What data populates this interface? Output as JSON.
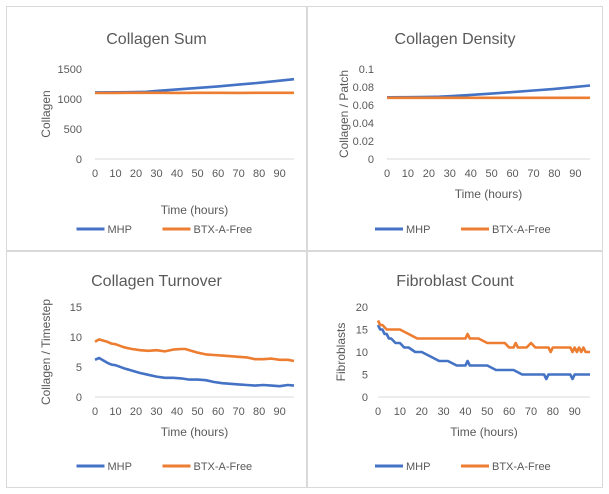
{
  "colors": {
    "MHP": "#4472C4",
    "BTX-A-Free": "#ED7D31"
  },
  "chart_data": [
    {
      "type": "line",
      "title": "Collagen Sum",
      "xlabel": "Time (hours)",
      "ylabel": "Collagen",
      "xlim": [
        0,
        97
      ],
      "ylim": [
        0,
        1500
      ],
      "xticks": [
        "0",
        "10",
        "20",
        "30",
        "40",
        "50",
        "60",
        "70",
        "80",
        "90"
      ],
      "yticks": [
        "0",
        "500",
        "1000",
        "1500"
      ],
      "legend": "bottom",
      "series": [
        {
          "name": "MHP",
          "x": [
            0,
            10,
            20,
            25,
            30,
            40,
            50,
            60,
            70,
            80,
            90,
            97
          ],
          "y": [
            1110,
            1112,
            1115,
            1120,
            1135,
            1160,
            1185,
            1210,
            1240,
            1270,
            1305,
            1330
          ]
        },
        {
          "name": "BTX-A-Free",
          "x": [
            0,
            10,
            20,
            30,
            40,
            50,
            60,
            70,
            80,
            90,
            97
          ],
          "y": [
            1100,
            1102,
            1103,
            1103,
            1102,
            1103,
            1103,
            1102,
            1103,
            1103,
            1103
          ]
        }
      ]
    },
    {
      "type": "line",
      "title": "Collagen Density",
      "xlabel": "Time (hours)",
      "ylabel": "Collagen / Patch",
      "xlim": [
        0,
        97
      ],
      "ylim": [
        0,
        0.1
      ],
      "xticks": [
        "0",
        "10",
        "20",
        "30",
        "40",
        "50",
        "60",
        "70",
        "80",
        "90"
      ],
      "yticks": [
        "0",
        "0.02",
        "0.04",
        "0.06",
        "0.08",
        "0.1"
      ],
      "legend": "bottom",
      "series": [
        {
          "name": "MHP",
          "x": [
            0,
            10,
            20,
            25,
            30,
            40,
            50,
            60,
            70,
            80,
            90,
            97
          ],
          "y": [
            0.0685,
            0.0687,
            0.069,
            0.0692,
            0.0698,
            0.0712,
            0.0727,
            0.0743,
            0.0761,
            0.0779,
            0.0801,
            0.0817
          ]
        },
        {
          "name": "BTX-A-Free",
          "x": [
            0,
            10,
            20,
            30,
            40,
            50,
            60,
            70,
            80,
            90,
            97
          ],
          "y": [
            0.068,
            0.068,
            0.068,
            0.068,
            0.068,
            0.068,
            0.068,
            0.068,
            0.068,
            0.068,
            0.068
          ]
        }
      ]
    },
    {
      "type": "line",
      "title": "Collagen Turnover",
      "xlabel": "Time (hours)",
      "ylabel": "Collagen / Timestep",
      "xlim": [
        0,
        97
      ],
      "ylim": [
        0,
        15
      ],
      "xticks": [
        "0",
        "10",
        "20",
        "30",
        "40",
        "50",
        "60",
        "70",
        "80",
        "90"
      ],
      "yticks": [
        "0",
        "5",
        "10",
        "15"
      ],
      "legend": "bottom",
      "series": [
        {
          "name": "MHP",
          "x": [
            0,
            2,
            4,
            6,
            8,
            10,
            14,
            18,
            22,
            26,
            30,
            34,
            38,
            42,
            46,
            50,
            54,
            58,
            62,
            66,
            70,
            74,
            78,
            82,
            86,
            90,
            94,
            97
          ],
          "y": [
            6.2,
            6.5,
            6.1,
            5.7,
            5.4,
            5.3,
            4.8,
            4.4,
            4.0,
            3.7,
            3.4,
            3.2,
            3.2,
            3.1,
            2.9,
            2.9,
            2.8,
            2.5,
            2.3,
            2.2,
            2.1,
            2.0,
            1.9,
            2.0,
            1.9,
            1.8,
            2.0,
            1.9
          ]
        },
        {
          "name": "BTX-A-Free",
          "x": [
            0,
            2,
            4,
            6,
            8,
            10,
            14,
            18,
            22,
            26,
            30,
            34,
            38,
            42,
            44,
            46,
            50,
            54,
            58,
            62,
            66,
            70,
            74,
            78,
            82,
            86,
            90,
            94,
            97
          ],
          "y": [
            9.2,
            9.6,
            9.4,
            9.2,
            8.9,
            8.8,
            8.3,
            8.0,
            7.8,
            7.7,
            7.8,
            7.6,
            7.9,
            8.0,
            8.0,
            7.8,
            7.4,
            7.1,
            7.0,
            6.9,
            6.8,
            6.7,
            6.6,
            6.3,
            6.3,
            6.4,
            6.2,
            6.2,
            6.0
          ]
        }
      ]
    },
    {
      "type": "line",
      "title": "Fibroblast Count",
      "xlabel": "Time (hours)",
      "ylabel": "Fibroblasts",
      "xlim": [
        0,
        97
      ],
      "ylim": [
        0,
        20
      ],
      "xticks": [
        "0",
        "10",
        "20",
        "30",
        "40",
        "50",
        "60",
        "70",
        "80",
        "90"
      ],
      "yticks": [
        "0",
        "5",
        "10",
        "15",
        "20"
      ],
      "legend": "bottom",
      "series": [
        {
          "name": "MHP",
          "x": [
            0,
            1,
            2,
            3,
            4,
            5,
            6,
            8,
            10,
            12,
            14,
            17,
            20,
            24,
            28,
            32,
            36,
            40,
            41,
            42,
            46,
            50,
            54,
            58,
            62,
            66,
            70,
            74,
            76,
            77,
            78,
            80,
            84,
            88,
            89,
            90,
            94,
            97
          ],
          "y": [
            16,
            15,
            15,
            14,
            14,
            13,
            13,
            12,
            12,
            11,
            11,
            10,
            10,
            9,
            8,
            8,
            7,
            7,
            8,
            7,
            7,
            7,
            6,
            6,
            6,
            5,
            5,
            5,
            5,
            4,
            5,
            5,
            5,
            5,
            4,
            5,
            5,
            5
          ]
        },
        {
          "name": "BTX-A-Free",
          "x": [
            0,
            1,
            2,
            4,
            6,
            10,
            14,
            18,
            22,
            26,
            30,
            34,
            38,
            40,
            41,
            42,
            46,
            50,
            54,
            58,
            60,
            62,
            63,
            64,
            66,
            68,
            70,
            72,
            74,
            76,
            78,
            79,
            80,
            84,
            88,
            89,
            90,
            91,
            92,
            93,
            94,
            95,
            97
          ],
          "y": [
            17,
            16,
            16,
            15,
            15,
            15,
            14,
            13,
            13,
            13,
            13,
            13,
            13,
            13,
            14,
            13,
            13,
            12,
            12,
            12,
            11,
            11,
            12,
            11,
            11,
            11,
            12,
            11,
            11,
            11,
            11,
            10,
            11,
            11,
            11,
            10,
            11,
            10,
            11,
            10,
            11,
            10,
            10
          ]
        }
      ]
    }
  ]
}
